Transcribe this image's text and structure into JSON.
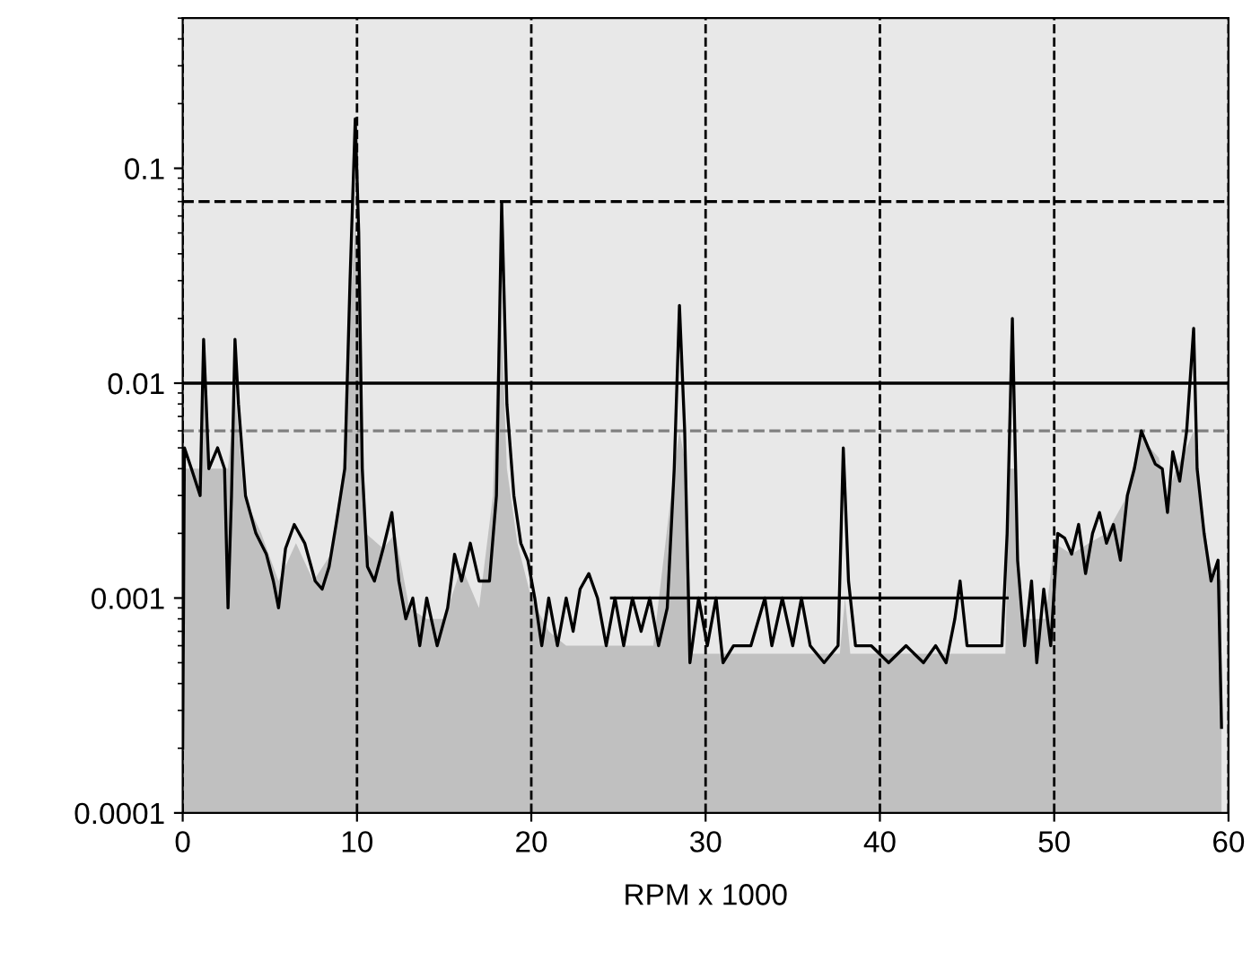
{
  "chart_data": {
    "type": "area",
    "xlabel": "RPM x 1000",
    "log": "y",
    "xlim": [
      0,
      60
    ],
    "xticks": [
      0,
      10,
      20,
      30,
      40,
      50,
      60
    ],
    "ylim": [
      0.0001,
      0.5
    ],
    "yticks": [
      0.0001,
      0.001,
      0.01,
      0.1
    ],
    "grid": "x",
    "series": [
      {
        "color": "#c0c0c0",
        "x": [
          0,
          1,
          1.2,
          1.6,
          2.6,
          3.0,
          3.5,
          4.5,
          5.5,
          6.5,
          7.5,
          8.5,
          9.2,
          9.6,
          9.9,
          10.2,
          10.5,
          11.5,
          12.2,
          13,
          14,
          15,
          16,
          17,
          17.8,
          18.2,
          18.6,
          19.2,
          20,
          21,
          22,
          27,
          28.2,
          28.5,
          28.9,
          29.2,
          37.7,
          38,
          38.3,
          47.2,
          47.4,
          47.8,
          48.1,
          49.5,
          50,
          51,
          52,
          53,
          54,
          55,
          55.5,
          56,
          56.5,
          57,
          57.6,
          58,
          58.3,
          59,
          59.6
        ],
        "values": [
          0.004,
          0.004,
          0.01,
          0.004,
          0.004,
          0.009,
          0.003,
          0.002,
          0.0012,
          0.0018,
          0.0012,
          0.0016,
          0.004,
          0.02,
          0.06,
          0.02,
          0.002,
          0.0017,
          0.002,
          0.0009,
          0.0008,
          0.0008,
          0.0014,
          0.0009,
          0.003,
          0.03,
          0.004,
          0.0018,
          0.001,
          0.0007,
          0.0006,
          0.0006,
          0.004,
          0.006,
          0.004,
          0.00055,
          0.00055,
          0.001,
          0.00055,
          0.00055,
          0.004,
          0.004,
          0.0008,
          0.0008,
          0.0018,
          0.0016,
          0.0018,
          0.002,
          0.0028,
          0.0058,
          0.005,
          0.0045,
          0.003,
          0.004,
          0.005,
          0.006,
          0.003,
          0.0014,
          0.0012
        ]
      },
      {
        "type": "line",
        "color": "#000000",
        "x": [
          0.0,
          0.1,
          0.5,
          1.0,
          1.2,
          1.5,
          2.0,
          2.4,
          2.6,
          2.8,
          3.0,
          3.2,
          3.6,
          4.2,
          4.8,
          5.2,
          5.5,
          5.9,
          6.4,
          7.0,
          7.6,
          8.0,
          8.4,
          8.8,
          9.3,
          9.6,
          9.9,
          10.1,
          10.3,
          10.6,
          11.0,
          11.5,
          12.0,
          12.4,
          12.8,
          13.2,
          13.6,
          14.0,
          14.6,
          15.2,
          15.6,
          16.0,
          16.5,
          17.0,
          17.6,
          18.0,
          18.3,
          18.6,
          19.0,
          19.4,
          19.8,
          20.2,
          20.6,
          21.0,
          21.5,
          22.0,
          22.4,
          22.8,
          23.3,
          23.8,
          24.3,
          24.8,
          25.3,
          25.8,
          26.3,
          26.8,
          27.3,
          27.8,
          28.2,
          28.5,
          28.8,
          29.1,
          29.6,
          30.1,
          30.6,
          31.0,
          31.6,
          32.6,
          33.4,
          33.8,
          34.4,
          35.0,
          35.5,
          36.0,
          36.8,
          37.6,
          37.9,
          38.2,
          38.6,
          39.5,
          40.5,
          41.5,
          42.5,
          43.2,
          43.8,
          44.3,
          44.6,
          45.0,
          46.0,
          47.0,
          47.3,
          47.6,
          47.9,
          48.3,
          48.7,
          49.0,
          49.4,
          49.8,
          50.2,
          50.6,
          51.0,
          51.4,
          51.8,
          52.2,
          52.6,
          53.0,
          53.4,
          53.8,
          54.2,
          54.6,
          55.0,
          55.4,
          55.8,
          56.2,
          56.5,
          56.8,
          57.2,
          57.6,
          58.0,
          58.2,
          58.6,
          59.0,
          59.4,
          59.6
        ],
        "values": [
          0.0002,
          0.005,
          0.004,
          0.003,
          0.016,
          0.004,
          0.005,
          0.004,
          0.0009,
          0.003,
          0.016,
          0.008,
          0.003,
          0.002,
          0.0016,
          0.0012,
          0.0009,
          0.0017,
          0.0022,
          0.0018,
          0.0012,
          0.0011,
          0.0014,
          0.0022,
          0.004,
          0.03,
          0.17,
          0.05,
          0.004,
          0.0014,
          0.0012,
          0.0017,
          0.0025,
          0.0012,
          0.0008,
          0.001,
          0.0006,
          0.001,
          0.0006,
          0.0009,
          0.0016,
          0.0012,
          0.0018,
          0.0012,
          0.0012,
          0.003,
          0.07,
          0.008,
          0.003,
          0.0018,
          0.0015,
          0.001,
          0.0006,
          0.001,
          0.0006,
          0.001,
          0.0007,
          0.0011,
          0.0013,
          0.001,
          0.0006,
          0.001,
          0.0006,
          0.001,
          0.0007,
          0.001,
          0.0006,
          0.0009,
          0.004,
          0.023,
          0.006,
          0.0005,
          0.001,
          0.0006,
          0.001,
          0.0005,
          0.0006,
          0.0006,
          0.001,
          0.0006,
          0.001,
          0.0006,
          0.001,
          0.0006,
          0.0005,
          0.0006,
          0.005,
          0.0012,
          0.0006,
          0.0006,
          0.0005,
          0.0006,
          0.0005,
          0.0006,
          0.0005,
          0.0008,
          0.0012,
          0.0006,
          0.0006,
          0.0006,
          0.002,
          0.02,
          0.0015,
          0.0006,
          0.0012,
          0.0005,
          0.0011,
          0.0006,
          0.002,
          0.0019,
          0.0016,
          0.0022,
          0.0013,
          0.002,
          0.0025,
          0.0018,
          0.0022,
          0.0015,
          0.003,
          0.004,
          0.006,
          0.005,
          0.0042,
          0.004,
          0.0025,
          0.0048,
          0.0035,
          0.006,
          0.018,
          0.004,
          0.002,
          0.0012,
          0.0015,
          0.00025
        ]
      },
      {
        "type": "line",
        "color": "#000000",
        "x": [
          24.6,
          47.3
        ],
        "values": [
          0.001,
          0.001
        ]
      }
    ],
    "ref_lines": [
      {
        "axis": "y",
        "value": 0.01,
        "color": "#000000",
        "line_style": "solid"
      },
      {
        "axis": "y",
        "value": 0.07,
        "color": "#000000",
        "line_style": "dashed"
      },
      {
        "axis": "y",
        "value": 0.006,
        "color": "#808080",
        "line_style": "dashed"
      }
    ]
  }
}
